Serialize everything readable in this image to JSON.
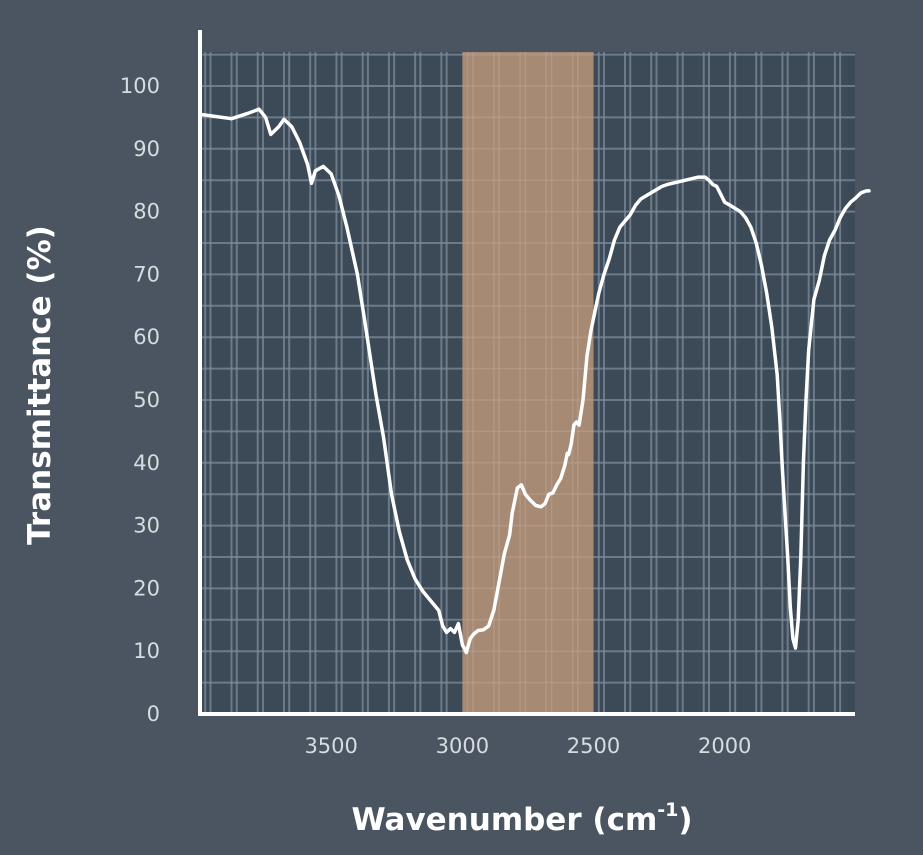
{
  "colors": {
    "background": "#4a5561",
    "plot_area": "#3c4a58",
    "grid": "#7c8b9a",
    "highlight": "#a78a74",
    "axis": "#ffffff",
    "curve": "#ffffff"
  },
  "chart_data": {
    "type": "line",
    "title": "",
    "xlabel": "Wavenumber (cm",
    "xlabel_superscript": "-1",
    "xlabel_suffix": ")",
    "ylabel": "Transmittance (%)",
    "xlim": [
      4000,
      1450
    ],
    "x_reversed": true,
    "ylim": [
      0,
      105
    ],
    "grid": true,
    "x_ticks": [
      {
        "value": 3500,
        "label": "3500"
      },
      {
        "value": 3000,
        "label": "3000"
      },
      {
        "value": 2500,
        "label": "2500"
      },
      {
        "value": 2000,
        "label": "2000"
      }
    ],
    "y_ticks": [
      {
        "value": 0,
        "label": "0"
      },
      {
        "value": 10,
        "label": "10"
      },
      {
        "value": 20,
        "label": "20"
      },
      {
        "value": 30,
        "label": "30"
      },
      {
        "value": 40,
        "label": "40"
      },
      {
        "value": 50,
        "label": "50"
      },
      {
        "value": 60,
        "label": "60"
      },
      {
        "value": 70,
        "label": "70"
      },
      {
        "value": 80,
        "label": "80"
      },
      {
        "value": 90,
        "label": "90"
      },
      {
        "value": 100,
        "label": "100"
      }
    ],
    "highlight_region": {
      "x_from": 3000,
      "x_to": 2500
    },
    "series": [
      {
        "x": [
          4000,
          3950,
          3880,
          3820,
          3775,
          3750,
          3730,
          3700,
          3680,
          3650,
          3620,
          3590,
          3575,
          3560,
          3530,
          3500,
          3470,
          3440,
          3400,
          3370,
          3330,
          3300,
          3270,
          3240,
          3210,
          3180,
          3150,
          3120,
          3090,
          3075,
          3060,
          3045,
          3030,
          3015,
          3000,
          2985,
          2970,
          2955,
          2940,
          2920,
          2900,
          2880,
          2860,
          2840,
          2820,
          2810,
          2800,
          2790,
          2775,
          2760,
          2740,
          2720,
          2700,
          2685,
          2670,
          2655,
          2640,
          2625,
          2610,
          2600,
          2595,
          2585,
          2575,
          2565,
          2555,
          2540,
          2525,
          2510,
          2495,
          2480,
          2460,
          2440,
          2420,
          2400,
          2380,
          2360,
          2340,
          2320,
          2300,
          2280,
          2260,
          2240,
          2220,
          2200,
          2150,
          2100,
          2075,
          2060,
          2045,
          2030,
          2000,
          1980,
          1960,
          1940,
          1920,
          1900,
          1880,
          1860,
          1840,
          1820,
          1800,
          1790,
          1780,
          1770,
          1760,
          1750,
          1740,
          1730,
          1720,
          1710,
          1700,
          1690,
          1680,
          1670,
          1660,
          1640,
          1620,
          1600,
          1580,
          1560,
          1540,
          1520,
          1500,
          1480,
          1460,
          1450
        ],
        "y": [
          95.5,
          95.2,
          94.8,
          95.6,
          96.3,
          95.0,
          92.3,
          93.5,
          94.7,
          93.5,
          91.0,
          87.5,
          84.5,
          86.5,
          87.2,
          86.0,
          82.5,
          77.5,
          70.0,
          62.0,
          51.0,
          44.0,
          35.0,
          29.0,
          24.5,
          21.5,
          19.5,
          18.0,
          16.5,
          14.0,
          13.0,
          13.6,
          13.0,
          14.4,
          11.0,
          9.8,
          12.0,
          12.8,
          13.3,
          13.4,
          14.0,
          16.5,
          21.0,
          25.5,
          28.5,
          32.0,
          34.0,
          36.0,
          36.5,
          35.0,
          34.0,
          33.2,
          33.0,
          33.5,
          35.0,
          35.2,
          36.5,
          37.5,
          39.5,
          41.5,
          41.3,
          43.0,
          46.0,
          46.5,
          46.0,
          50.0,
          57.0,
          61.0,
          64.0,
          67.0,
          70.0,
          72.5,
          75.5,
          77.5,
          78.5,
          79.5,
          81.0,
          82.0,
          82.5,
          83.0,
          83.5,
          84.0,
          84.3,
          84.5,
          85.0,
          85.5,
          85.5,
          85.0,
          84.3,
          84.0,
          81.5,
          81.0,
          80.5,
          80.0,
          79.0,
          77.5,
          75.0,
          71.5,
          67.0,
          61.5,
          54.0,
          47.0,
          39.0,
          32.0,
          25.0,
          17.0,
          12.0,
          10.5,
          15.0,
          25.0,
          40.0,
          50.0,
          58.0,
          62.0,
          66.0,
          69.0,
          73.0,
          75.5,
          77.0,
          79.0,
          80.5,
          81.5,
          82.2,
          83.0,
          83.3,
          83.3
        ]
      }
    ]
  }
}
